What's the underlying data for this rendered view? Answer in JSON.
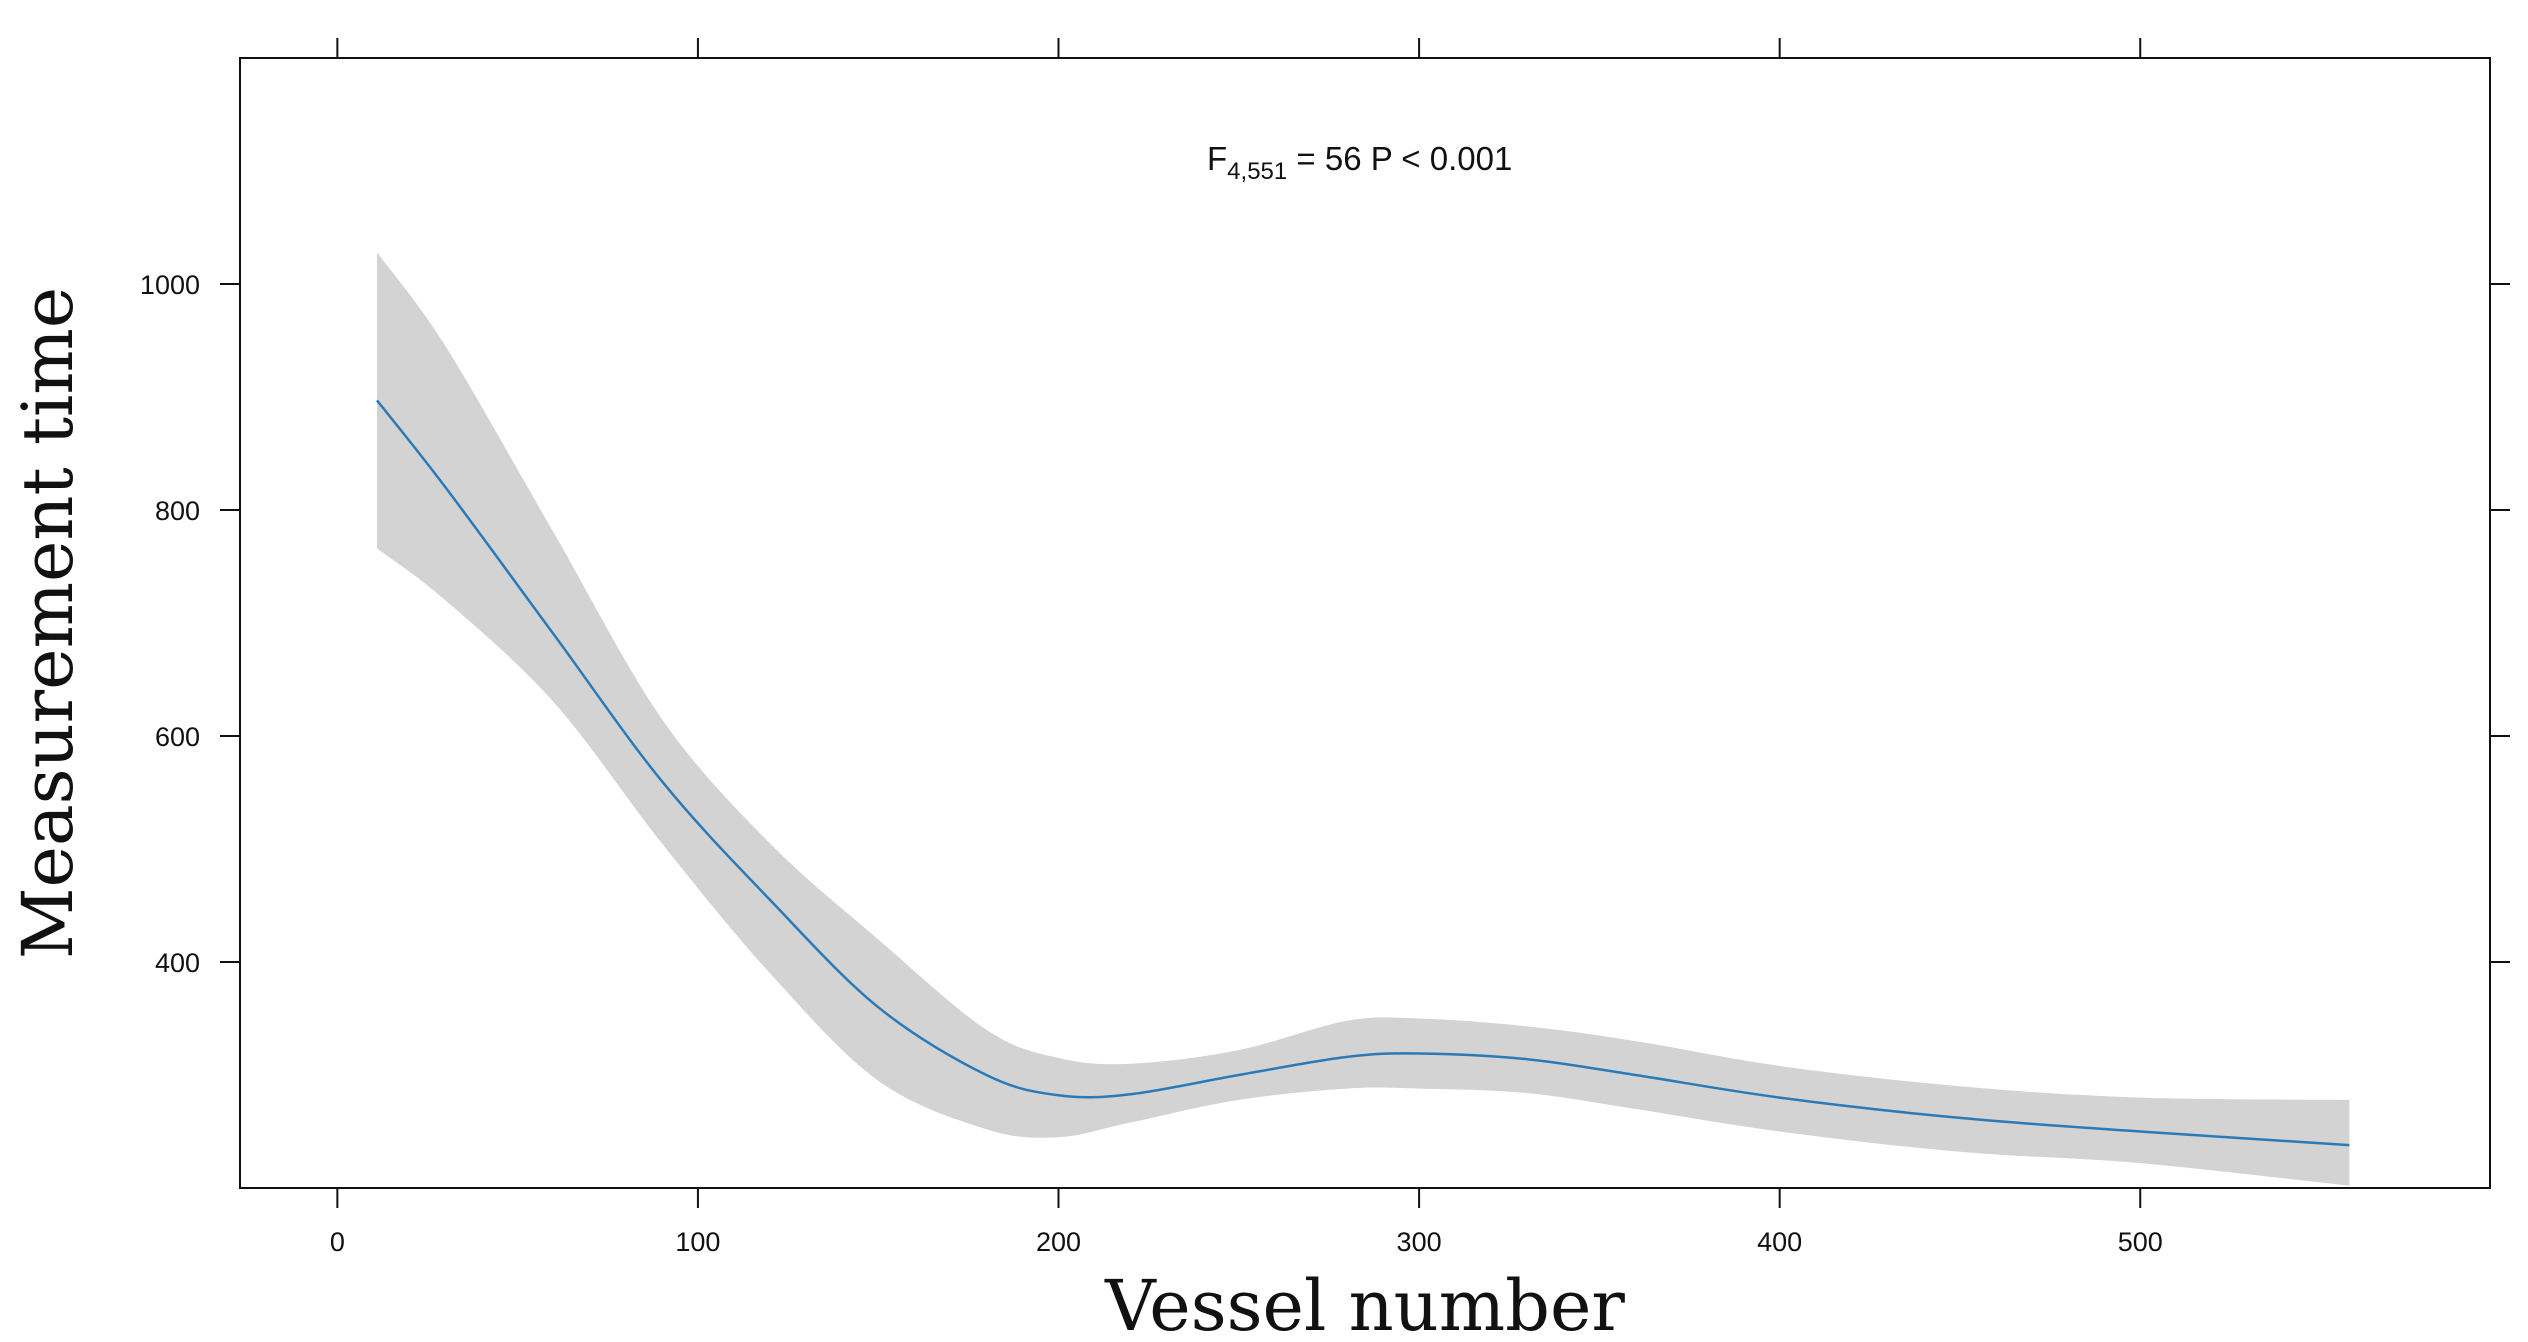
{
  "chart_data": {
    "type": "line",
    "title": "",
    "xlabel": "Vessel number",
    "ylabel": "Measurement time",
    "annotation": {
      "main": "F",
      "sub": "4,551",
      "rest": " = 56  P < 0.001"
    },
    "xlim": [
      -27,
      597
    ],
    "ylim": [
      200,
      1200
    ],
    "x_ticks": [
      0,
      100,
      200,
      300,
      400,
      500
    ],
    "y_ticks": [
      400,
      600,
      800,
      1000
    ],
    "x_tick_labels": [
      "0",
      "100",
      "200",
      "300",
      "400",
      "500"
    ],
    "y_tick_labels": [
      "400",
      "600",
      "800",
      "1000"
    ],
    "series": [
      {
        "color": "#2a7ab8",
        "band_color": "#d3d3d3",
        "x": [
          11,
          30,
          60,
          90,
          120,
          150,
          180,
          200,
          220,
          250,
          280,
          300,
          330,
          360,
          400,
          450,
          500,
          558
        ],
        "y": [
          897,
          820,
          690,
          560,
          455,
          360,
          300,
          282,
          283,
          300,
          316,
          319,
          314,
          300,
          280,
          262,
          250,
          238
        ],
        "lower": [
          766,
          720,
          630,
          505,
          390,
          295,
          252,
          245,
          258,
          278,
          288,
          288,
          284,
          270,
          250,
          232,
          222,
          202
        ],
        "upper": [
          1028,
          945,
          780,
          615,
          505,
          420,
          340,
          315,
          310,
          322,
          348,
          350,
          343,
          330,
          308,
          290,
          280,
          278
        ]
      }
    ],
    "grid": false,
    "legend": "none"
  }
}
